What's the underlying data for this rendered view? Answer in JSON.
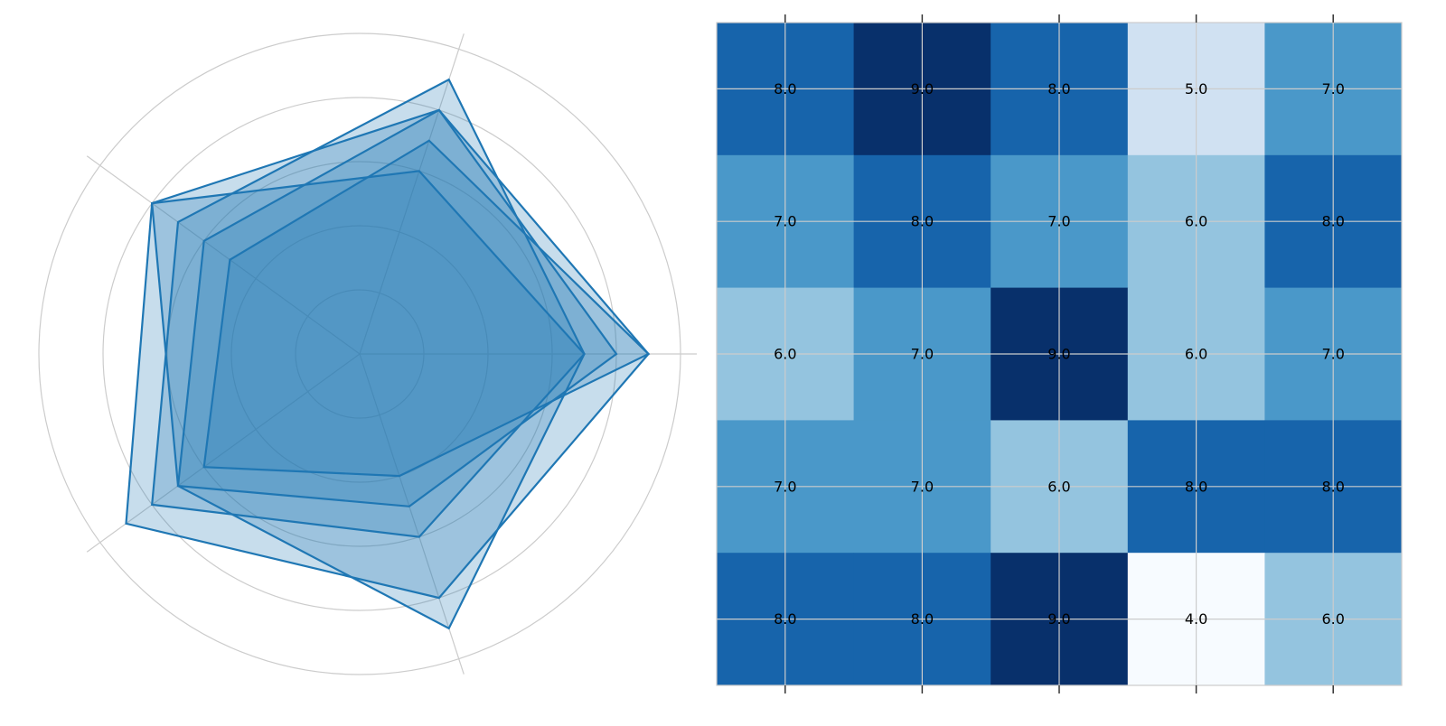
{
  "chart_data": [
    {
      "type": "radar",
      "axes_count": 5,
      "scale_max": 10,
      "rings": [
        2,
        4,
        6,
        8,
        10
      ],
      "grid": true,
      "tick_labels_visible": false,
      "colors": {
        "line": "#1f77b4",
        "fill": "#1f77b4",
        "fill_opacity": 0.25,
        "grid": "#cccccc"
      },
      "series": [
        {
          "values": [
            9,
            7,
            5,
            6,
            4
          ]
        },
        {
          "values": [
            8,
            8,
            6,
            7,
            5
          ]
        },
        {
          "values": [
            7,
            9,
            7,
            8,
            6
          ]
        },
        {
          "values": [
            9,
            8,
            8,
            9,
            8
          ]
        },
        {
          "values": [
            7,
            6,
            8,
            7,
            9
          ]
        }
      ]
    },
    {
      "type": "heatmap",
      "colormap": "Blues",
      "value_range": [
        4,
        9
      ],
      "grid": true,
      "tick_labels_visible": false,
      "rows": [
        [
          8.0,
          9.0,
          8.0,
          5.0,
          7.0
        ],
        [
          7.0,
          8.0,
          7.0,
          6.0,
          8.0
        ],
        [
          6.0,
          7.0,
          9.0,
          6.0,
          7.0
        ],
        [
          7.0,
          7.0,
          6.0,
          8.0,
          8.0
        ],
        [
          8.0,
          8.0,
          9.0,
          4.0,
          6.0
        ]
      ],
      "cell_labels": [
        [
          "8.0",
          "9.0",
          "8.0",
          "5.0",
          "7.0"
        ],
        [
          "7.0",
          "8.0",
          "7.0",
          "6.0",
          "8.0"
        ],
        [
          "6.0",
          "7.0",
          "9.0",
          "6.0",
          "7.0"
        ],
        [
          "7.0",
          "7.0",
          "6.0",
          "8.0",
          "8.0"
        ],
        [
          "8.0",
          "8.0",
          "9.0",
          "4.0",
          "6.0"
        ]
      ],
      "color_scale": {
        "4": "#f7fbff",
        "5": "#d0e1f2",
        "6": "#94c4df",
        "7": "#4a98c9",
        "8": "#1764ab",
        "9": "#08306b"
      }
    }
  ]
}
